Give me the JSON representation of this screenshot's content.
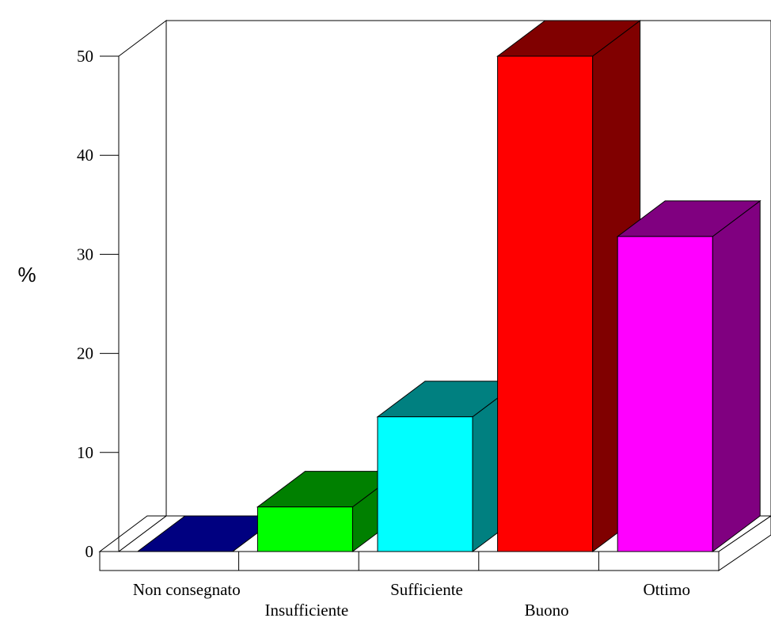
{
  "chart_data": {
    "type": "bar",
    "style": "3d",
    "title": "",
    "xlabel": "",
    "ylabel": "%",
    "ylim": [
      0,
      50
    ],
    "yticks": [
      0,
      10,
      20,
      30,
      40,
      50
    ],
    "categories": [
      "Non consegnato",
      "Insufficiente",
      "Sufficiente",
      "Buono",
      "Ottimo"
    ],
    "values": [
      0,
      4.5,
      13.6,
      50,
      31.8
    ],
    "colors": [
      {
        "front": "#0000ff",
        "top": "#000080",
        "side": "#000080"
      },
      {
        "front": "#00ff00",
        "top": "#008000",
        "side": "#008000"
      },
      {
        "front": "#00ffff",
        "top": "#008080",
        "side": "#008080"
      },
      {
        "front": "#ff0000",
        "top": "#800000",
        "side": "#800000"
      },
      {
        "front": "#ff00ff",
        "top": "#800080",
        "side": "#800080"
      }
    ],
    "grid": false,
    "legend": "none"
  }
}
